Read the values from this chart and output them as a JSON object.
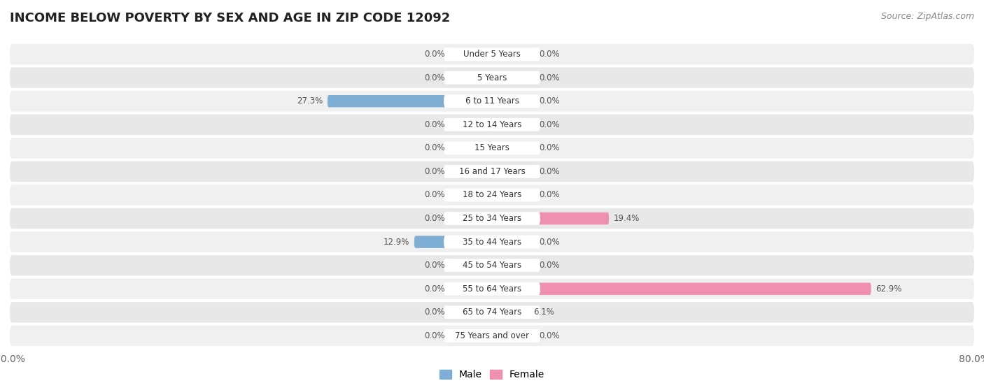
{
  "title": "INCOME BELOW POVERTY BY SEX AND AGE IN ZIP CODE 12092",
  "source": "Source: ZipAtlas.com",
  "categories": [
    "Under 5 Years",
    "5 Years",
    "6 to 11 Years",
    "12 to 14 Years",
    "15 Years",
    "16 and 17 Years",
    "18 to 24 Years",
    "25 to 34 Years",
    "35 to 44 Years",
    "45 to 54 Years",
    "55 to 64 Years",
    "65 to 74 Years",
    "75 Years and over"
  ],
  "male_values": [
    0.0,
    0.0,
    27.3,
    0.0,
    0.0,
    0.0,
    0.0,
    0.0,
    12.9,
    0.0,
    0.0,
    0.0,
    0.0
  ],
  "female_values": [
    0.0,
    0.0,
    0.0,
    0.0,
    0.0,
    0.0,
    0.0,
    19.4,
    0.0,
    0.0,
    62.9,
    6.1,
    0.0
  ],
  "male_color": "#7eaed4",
  "female_color": "#f090b0",
  "male_zero_color": "#adc8e0",
  "female_zero_color": "#f4bece",
  "row_colors": [
    "#f0f0f0",
    "#e8e8e8"
  ],
  "row_pill_color": "#e0e0e0",
  "xlim": 80.0,
  "min_stub": 7.0,
  "title_fontsize": 13,
  "tick_fontsize": 10,
  "legend_fontsize": 10,
  "source_fontsize": 9,
  "cat_label_fontsize": 8.5,
  "val_label_fontsize": 8.5
}
